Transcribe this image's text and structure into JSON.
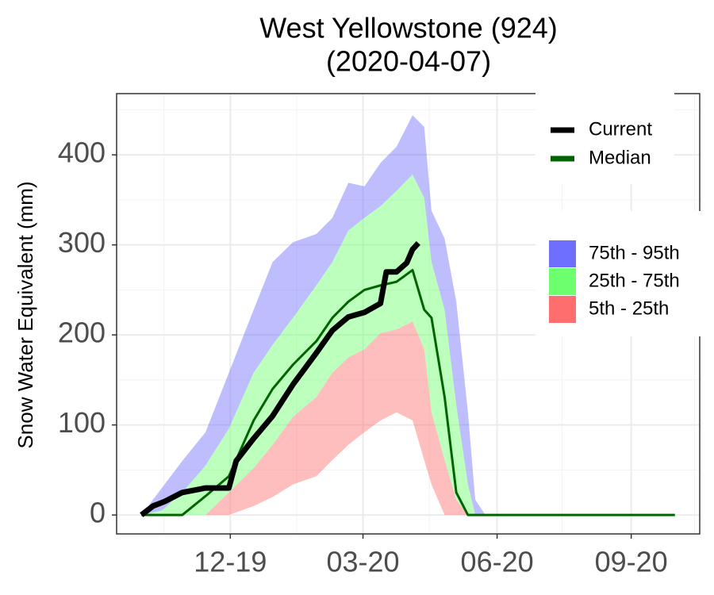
{
  "chart_data": {
    "type": "band-line",
    "title": "West Yellowstone (924)",
    "subtitle": "(2020-04-07)",
    "y_label": "Snow Water Equivalent (mm)",
    "x": [
      0,
      14,
      28,
      44,
      60,
      77,
      90,
      104,
      120,
      131,
      142,
      153,
      164,
      175,
      186,
      194,
      199,
      208,
      216,
      224,
      229,
      236,
      366
    ],
    "bands": [
      {
        "name": "75th - 95th",
        "color": "#6e6eff",
        "lower": [
          0,
          5,
          25,
          55,
          96,
          158,
          189,
          219,
          255,
          281,
          316,
          330,
          343,
          360,
          378,
          352,
          281,
          228,
          122,
          34,
          0,
          0,
          0
        ],
        "upper": [
          0,
          30,
          60,
          92,
          158,
          228,
          281,
          303,
          312,
          330,
          369,
          365,
          391,
          409,
          444,
          431,
          338,
          307,
          237,
          114,
          17,
          0,
          0
        ]
      },
      {
        "name": "25th - 75th",
        "color": "#6dff6d",
        "lower": [
          0,
          0,
          0,
          0,
          25,
          52,
          78,
          109,
          131,
          158,
          175,
          184,
          202,
          206,
          215,
          184,
          114,
          61,
          17,
          0,
          0,
          0,
          0
        ],
        "upper": [
          0,
          5,
          25,
          55,
          96,
          158,
          189,
          219,
          255,
          281,
          316,
          330,
          343,
          360,
          378,
          352,
          281,
          228,
          122,
          34,
          0,
          0,
          0
        ]
      },
      {
        "name": "5th - 25th",
        "color": "#ff6e6e",
        "lower": [
          0,
          0,
          0,
          0,
          0,
          10,
          20,
          34,
          43,
          61,
          78,
          92,
          105,
          114,
          105,
          61,
          34,
          0,
          0,
          0,
          0,
          0,
          0
        ],
        "upper": [
          0,
          0,
          0,
          0,
          25,
          52,
          78,
          109,
          131,
          158,
          175,
          184,
          202,
          206,
          215,
          184,
          114,
          61,
          17,
          0,
          0,
          0,
          0
        ]
      }
    ],
    "lines": [
      {
        "name": "Current",
        "color": "#000000",
        "width": 7,
        "x": [
          0,
          8,
          16,
          28,
          44,
          60,
          65,
          77,
          90,
          104,
          120,
          131,
          142,
          153,
          164,
          168,
          175,
          182,
          186,
          190
        ],
        "values": [
          0,
          10,
          15,
          25,
          30,
          30,
          60,
          85,
          110,
          145,
          180,
          205,
          220,
          225,
          235,
          270,
          270,
          280,
          295,
          302
        ]
      },
      {
        "name": "Median",
        "color": "#006400",
        "width": 3,
        "x": [
          0,
          14,
          28,
          44,
          60,
          77,
          90,
          104,
          120,
          131,
          142,
          153,
          164,
          175,
          186,
          194,
          199,
          208,
          216,
          224,
          366
        ],
        "values": [
          0,
          0,
          0,
          21,
          43,
          105,
          140,
          167,
          193,
          219,
          237,
          250,
          255,
          259,
          272,
          228,
          219,
          131,
          25,
          0,
          0
        ]
      }
    ],
    "xlim": [
      -17,
      383
    ],
    "xticks": [
      {
        "value": 61,
        "label": "12-19"
      },
      {
        "value": 152,
        "label": "03-20"
      },
      {
        "value": 244,
        "label": "06-20"
      },
      {
        "value": 336,
        "label": "09-20"
      }
    ],
    "ylim": [
      -21,
      468
    ],
    "yticks": [
      0,
      100,
      200,
      300,
      400
    ],
    "grid": true
  }
}
